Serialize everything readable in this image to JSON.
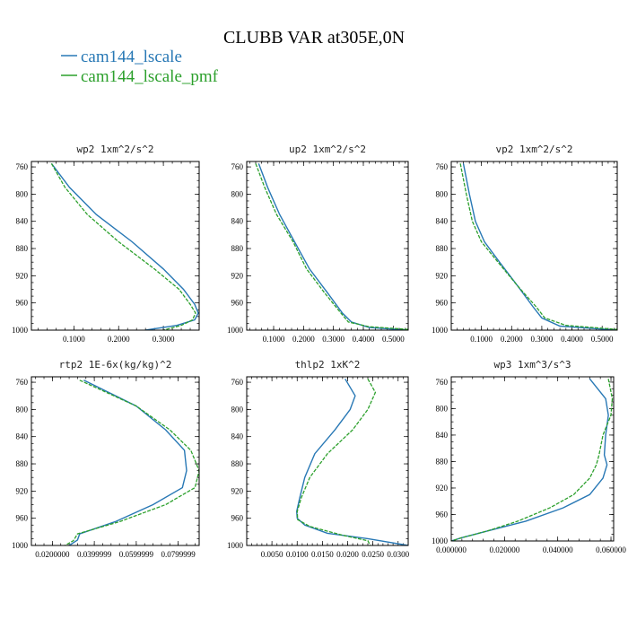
{
  "figure": {
    "title": "CLUBB VAR at305E,0N",
    "legend": [
      {
        "name": "cam144_lscale",
        "color": "#2878b5"
      },
      {
        "name": "cam144_lscale_pmf",
        "color": "#2ca02c"
      }
    ]
  },
  "chart_data": [
    {
      "type": "line",
      "title": "wp2   1xm^2/s^2",
      "xlim": [
        0.005,
        0.38
      ],
      "ylim": [
        1000,
        752
      ],
      "xticks": [
        0.1,
        0.2,
        0.3
      ],
      "xtick_labels": [
        "0.1000",
        "0.2000",
        "0.3000"
      ],
      "yticks": [
        760,
        800,
        840,
        880,
        920,
        960,
        1000
      ],
      "ytick_labels": [
        "760",
        "800",
        "840",
        "880",
        "920",
        "960",
        "1000"
      ],
      "series": [
        {
          "name": "cam144_lscale",
          "x": [
            0.05,
            0.09,
            0.15,
            0.23,
            0.3,
            0.345,
            0.37,
            0.378,
            0.37,
            0.33,
            0.26
          ],
          "y": [
            755,
            790,
            830,
            870,
            910,
            940,
            962,
            975,
            985,
            993,
            1000
          ]
        },
        {
          "name": "cam144_lscale_pmf",
          "x": [
            0.05,
            0.08,
            0.13,
            0.2,
            0.28,
            0.335,
            0.36,
            0.372,
            0.365,
            0.34,
            0.3
          ],
          "y": [
            755,
            790,
            830,
            870,
            910,
            940,
            962,
            975,
            985,
            993,
            1000
          ]
        }
      ]
    },
    {
      "type": "line",
      "title": "up2   1xm^2/s^2",
      "xlim": [
        0.01,
        0.55
      ],
      "ylim": [
        1000,
        752
      ],
      "xticks": [
        0.1,
        0.2,
        0.3,
        0.4,
        0.5
      ],
      "xtick_labels": [
        "0.1000",
        "0.2000",
        "0.3000",
        "0.4000",
        "0.5000"
      ],
      "yticks": [
        760,
        800,
        840,
        880,
        920,
        960,
        1000
      ],
      "ytick_labels": [
        "760",
        "800",
        "840",
        "880",
        "920",
        "960",
        "1000"
      ],
      "series": [
        {
          "name": "cam144_lscale",
          "x": [
            0.05,
            0.08,
            0.12,
            0.17,
            0.22,
            0.28,
            0.33,
            0.36,
            0.42,
            0.55
          ],
          "y": [
            755,
            790,
            830,
            870,
            910,
            945,
            975,
            988,
            996,
            1000
          ]
        },
        {
          "name": "cam144_lscale_pmf",
          "x": [
            0.04,
            0.07,
            0.11,
            0.165,
            0.21,
            0.27,
            0.325,
            0.35,
            0.42,
            0.55
          ],
          "y": [
            755,
            790,
            830,
            870,
            910,
            945,
            975,
            988,
            995,
            999
          ]
        }
      ]
    },
    {
      "type": "line",
      "title": "vp2   1xm^2/s^2",
      "xlim": [
        0.0,
        0.55
      ],
      "ylim": [
        1000,
        752
      ],
      "xticks": [
        0.1,
        0.2,
        0.3,
        0.4,
        0.5
      ],
      "xtick_labels": [
        "0.1000",
        "0.2000",
        "0.3000",
        "0.4000",
        "0.5000"
      ],
      "yticks": [
        760,
        800,
        840,
        880,
        920,
        960,
        1000
      ],
      "ytick_labels": [
        "760",
        "800",
        "840",
        "880",
        "920",
        "960",
        "1000"
      ],
      "series": [
        {
          "name": "cam144_lscale",
          "x": [
            0.04,
            0.06,
            0.08,
            0.11,
            0.16,
            0.22,
            0.27,
            0.3,
            0.36,
            0.55
          ],
          "y": [
            755,
            800,
            840,
            870,
            900,
            935,
            965,
            982,
            994,
            1000
          ]
        },
        {
          "name": "cam144_lscale_pmf",
          "x": [
            0.03,
            0.05,
            0.07,
            0.1,
            0.155,
            0.22,
            0.28,
            0.31,
            0.38,
            0.55
          ],
          "y": [
            755,
            800,
            840,
            870,
            900,
            935,
            965,
            982,
            993,
            999
          ]
        }
      ]
    },
    {
      "type": "line",
      "title": "rtp2   1E-6x(kg/kg)^2",
      "xlim": [
        0.01,
        0.09
      ],
      "ylim": [
        1000,
        752
      ],
      "xticks": [
        0.02,
        0.04,
        0.06,
        0.08
      ],
      "xtick_labels": [
        "0.0200000",
        "0.0399999",
        "0.0599999",
        "0.0799999"
      ],
      "yticks": [
        760,
        800,
        840,
        880,
        920,
        960,
        1000
      ],
      "ytick_labels": [
        "760",
        "800",
        "840",
        "880",
        "920",
        "960",
        "1000"
      ],
      "series": [
        {
          "name": "cam144_lscale",
          "x": [
            0.035,
            0.06,
            0.074,
            0.083,
            0.084,
            0.082,
            0.068,
            0.05,
            0.033,
            0.032,
            0.028
          ],
          "y": [
            757,
            795,
            830,
            860,
            890,
            915,
            940,
            965,
            983,
            992,
            1000
          ]
        },
        {
          "name": "cam144_lscale_pmf",
          "x": [
            0.033,
            0.06,
            0.076,
            0.086,
            0.09,
            0.088,
            0.074,
            0.052,
            0.032,
            0.03,
            0.026
          ],
          "y": [
            757,
            795,
            830,
            860,
            890,
            915,
            940,
            965,
            983,
            993,
            1000
          ]
        }
      ]
    },
    {
      "type": "line",
      "title": "thlp2   1xK^2",
      "xlim": [
        0.0,
        0.032
      ],
      "ylim": [
        1000,
        752
      ],
      "xticks": [
        0.005,
        0.01,
        0.015,
        0.02,
        0.025,
        0.03
      ],
      "xtick_labels": [
        "0.0050",
        "0.0100",
        "0.0150",
        "0.0200",
        "0.0250",
        "0.0300"
      ],
      "yticks": [
        760,
        800,
        840,
        880,
        920,
        960,
        1000
      ],
      "ytick_labels": [
        "760",
        "800",
        "840",
        "880",
        "920",
        "960",
        "1000"
      ],
      "series": [
        {
          "name": "cam144_lscale",
          "x": [
            0.0195,
            0.0215,
            0.0205,
            0.0175,
            0.0135,
            0.0115,
            0.0105,
            0.0099,
            0.01,
            0.0115,
            0.016,
            0.024,
            0.032
          ],
          "y": [
            755,
            780,
            800,
            830,
            865,
            900,
            930,
            950,
            960,
            970,
            982,
            990,
            1000
          ]
        },
        {
          "name": "cam144_lscale_pmf",
          "x": [
            0.024,
            0.0255,
            0.024,
            0.021,
            0.016,
            0.0125,
            0.0108,
            0.01,
            0.0101,
            0.0125,
            0.019,
            0.024,
            0.0245
          ],
          "y": [
            755,
            775,
            800,
            830,
            865,
            900,
            930,
            950,
            962,
            972,
            985,
            993,
            1000
          ]
        }
      ]
    },
    {
      "type": "line",
      "title": "wp3   1xm^3/s^3",
      "xlim": [
        0.0,
        0.061
      ],
      "ylim": [
        1000,
        752
      ],
      "xticks": [
        0.0,
        0.02,
        0.04,
        0.06
      ],
      "xtick_labels": [
        "0.000000",
        "0.020000",
        "0.040000",
        "0.060000"
      ],
      "yticks": [
        760,
        800,
        840,
        880,
        920,
        960,
        1000
      ],
      "ytick_labels": [
        "760",
        "800",
        "840",
        "880",
        "920",
        "960",
        "1000"
      ],
      "series": [
        {
          "name": "cam144_lscale",
          "x": [
            0.052,
            0.058,
            0.059,
            0.058,
            0.0575,
            0.0585,
            0.057,
            0.052,
            0.042,
            0.028,
            0.0135,
            0.004,
            0.0
          ],
          "y": [
            755,
            785,
            810,
            840,
            870,
            885,
            905,
            930,
            950,
            970,
            985,
            995,
            1000
          ]
        },
        {
          "name": "cam144_lscale_pmf",
          "x": [
            0.059,
            0.0605,
            0.06,
            0.057,
            0.0555,
            0.0545,
            0.052,
            0.046,
            0.037,
            0.025,
            0.0135,
            0.004,
            0.0
          ],
          "y": [
            755,
            785,
            810,
            840,
            870,
            885,
            905,
            930,
            950,
            970,
            985,
            995,
            1000
          ]
        }
      ]
    }
  ]
}
